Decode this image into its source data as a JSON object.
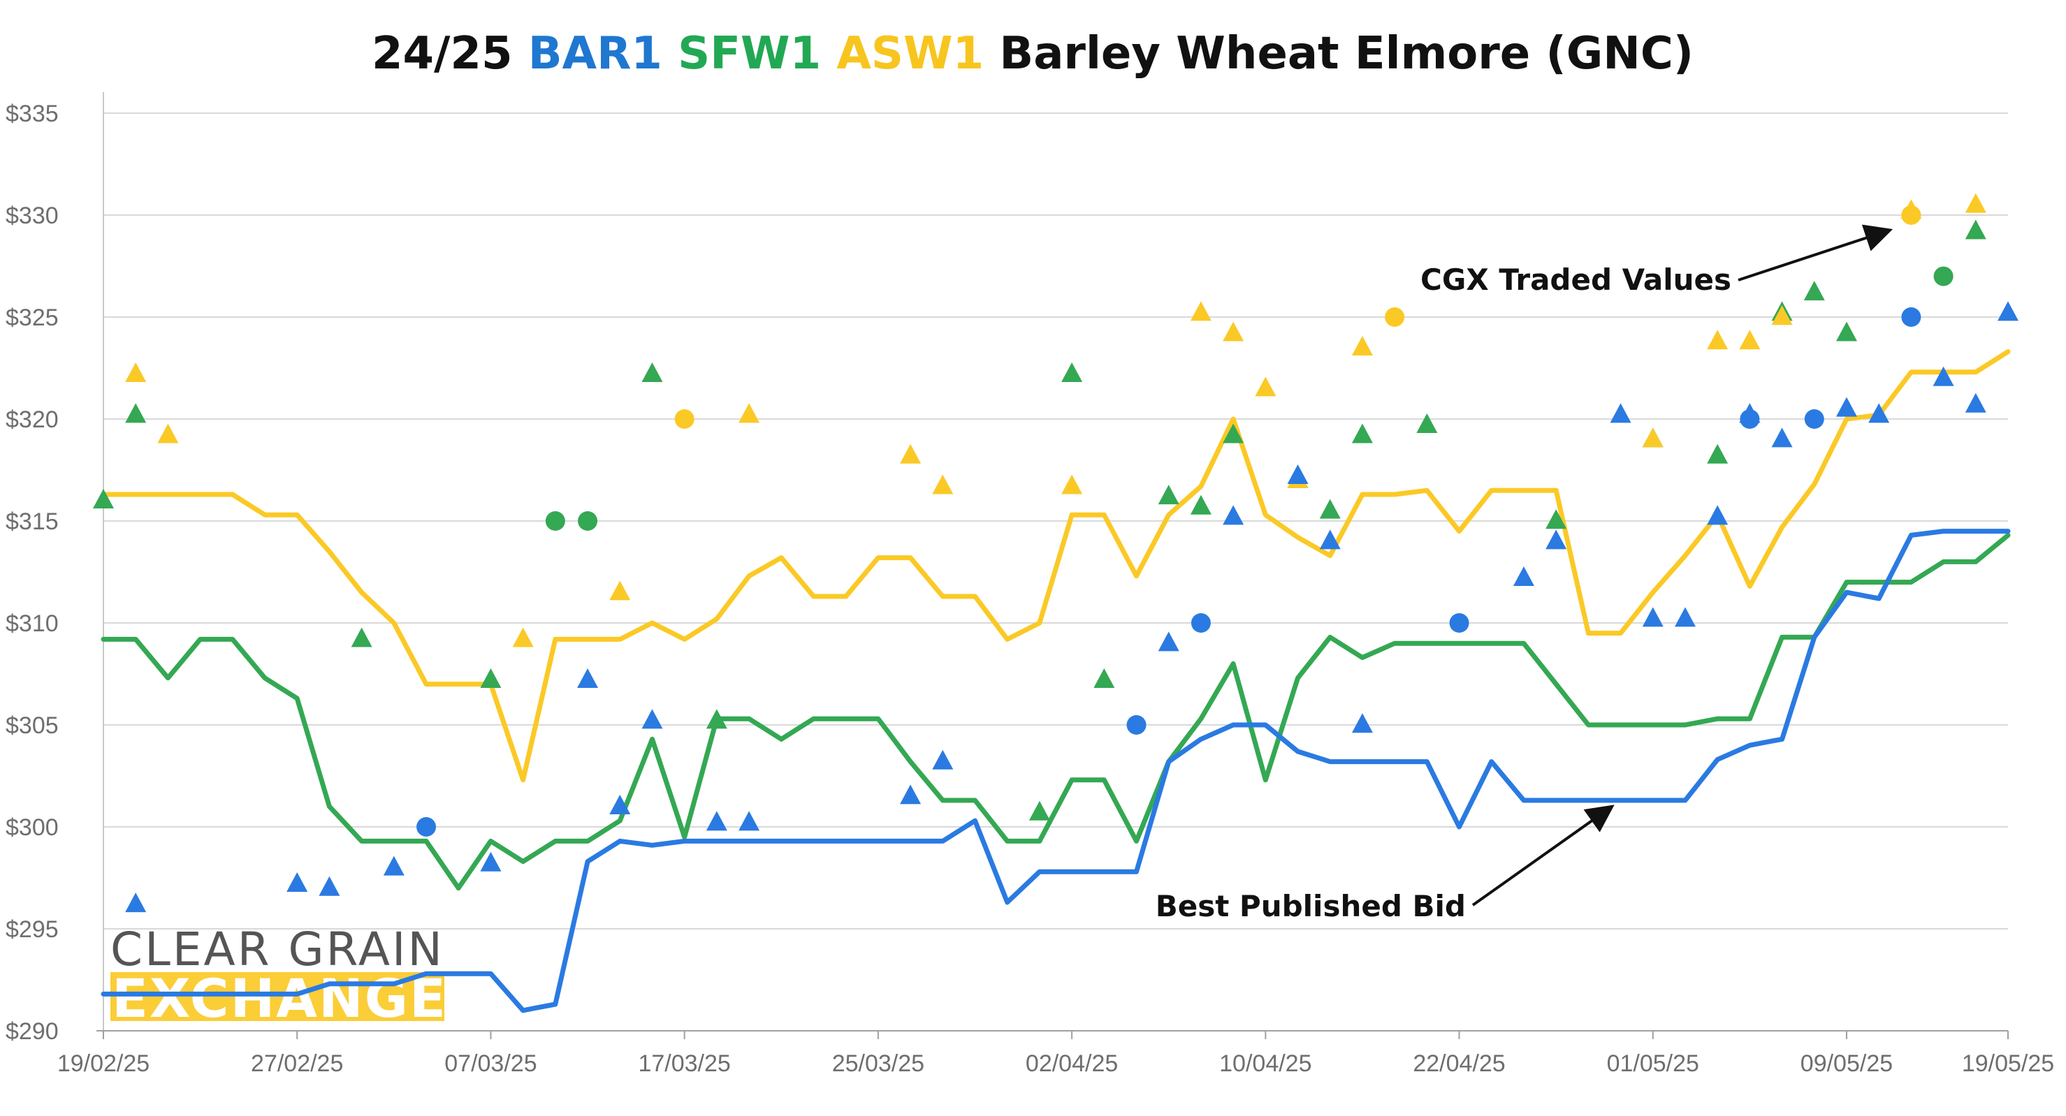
{
  "chart_data": {
    "type": "line",
    "title": {
      "parts": [
        {
          "text": "24/25 ",
          "color": "#111111"
        },
        {
          "text": "BAR1",
          "color": "#1f77d0"
        },
        {
          "text": " ",
          "color": "#111111"
        },
        {
          "text": "SFW1",
          "color": "#22a854"
        },
        {
          "text": " ",
          "color": "#111111"
        },
        {
          "text": "ASW1",
          "color": "#f7c51e"
        },
        {
          "text": " Barley Wheat Elmore (GNC)",
          "color": "#111111"
        }
      ]
    },
    "ylim": [
      290,
      335
    ],
    "yticks": [
      290,
      295,
      300,
      305,
      310,
      315,
      320,
      325,
      330,
      335
    ],
    "ytick_labels": [
      "$290",
      "$295",
      "$300",
      "$305",
      "$310",
      "$315",
      "$320",
      "$325",
      "$330",
      "$335"
    ],
    "xlim": [
      0,
      59
    ],
    "xticks": [
      0,
      6,
      12,
      18,
      24,
      30,
      36,
      42,
      48,
      54,
      59
    ],
    "xtick_labels": [
      "19/02/25",
      "27/02/25",
      "07/03/25",
      "17/03/25",
      "25/03/25",
      "02/04/25",
      "10/04/25",
      "22/04/25",
      "01/05/25",
      "09/05/25",
      "19/05/25"
    ],
    "grid": true,
    "colors": {
      "BAR1": "#2a7ae2",
      "SFW1": "#34a853",
      "ASW1": "#fbc926"
    },
    "series": [
      {
        "code": "ASW1",
        "kind": "line",
        "values": [
          [
            0,
            316.3
          ],
          [
            1,
            316.3
          ],
          [
            2,
            316.3
          ],
          [
            3,
            316.3
          ],
          [
            4,
            316.3
          ],
          [
            5,
            315.3
          ],
          [
            6,
            315.3
          ],
          [
            7,
            313.5
          ],
          [
            8,
            311.5
          ],
          [
            9,
            310.0
          ],
          [
            10,
            307.0
          ],
          [
            11,
            307.0
          ],
          [
            12,
            307.0
          ],
          [
            13,
            302.3
          ],
          [
            14,
            309.2
          ],
          [
            15,
            309.2
          ],
          [
            16,
            309.2
          ],
          [
            17,
            310.0
          ],
          [
            18,
            309.2
          ],
          [
            19,
            310.2
          ],
          [
            20,
            312.3
          ],
          [
            21,
            313.2
          ],
          [
            22,
            311.3
          ],
          [
            23,
            311.3
          ],
          [
            24,
            313.2
          ],
          [
            25,
            313.2
          ],
          [
            26,
            311.3
          ],
          [
            27,
            311.3
          ],
          [
            28,
            309.2
          ],
          [
            29,
            310.0
          ],
          [
            30,
            315.3
          ],
          [
            31,
            315.3
          ],
          [
            32,
            312.3
          ],
          [
            33,
            315.3
          ],
          [
            34,
            316.7
          ],
          [
            35,
            320.0
          ],
          [
            36,
            315.3
          ],
          [
            37,
            314.2
          ],
          [
            38,
            313.3
          ],
          [
            39,
            316.3
          ],
          [
            40,
            316.3
          ],
          [
            41,
            316.5
          ],
          [
            42,
            314.5
          ],
          [
            43,
            316.5
          ],
          [
            44,
            316.5
          ],
          [
            45,
            316.5
          ],
          [
            46,
            309.5
          ],
          [
            47,
            309.5
          ],
          [
            48,
            311.5
          ],
          [
            49,
            313.3
          ],
          [
            50,
            315.3
          ],
          [
            51,
            311.8
          ],
          [
            52,
            314.7
          ],
          [
            53,
            316.8
          ],
          [
            54,
            320.0
          ],
          [
            55,
            320.2
          ],
          [
            56,
            322.3
          ],
          [
            57,
            322.3
          ],
          [
            58,
            322.3
          ],
          [
            59,
            323.3
          ]
        ]
      },
      {
        "code": "SFW1",
        "kind": "line",
        "values": [
          [
            0,
            309.2
          ],
          [
            1,
            309.2
          ],
          [
            2,
            307.3
          ],
          [
            3,
            309.2
          ],
          [
            4,
            309.2
          ],
          [
            5,
            307.3
          ],
          [
            6,
            306.3
          ],
          [
            7,
            301.0
          ],
          [
            8,
            299.3
          ],
          [
            9,
            299.3
          ],
          [
            10,
            299.3
          ],
          [
            11,
            297.0
          ],
          [
            12,
            299.3
          ],
          [
            13,
            298.3
          ],
          [
            14,
            299.3
          ],
          [
            15,
            299.3
          ],
          [
            16,
            300.3
          ],
          [
            17,
            304.3
          ],
          [
            18,
            299.5
          ],
          [
            19,
            305.3
          ],
          [
            20,
            305.3
          ],
          [
            21,
            304.3
          ],
          [
            22,
            305.3
          ],
          [
            23,
            305.3
          ],
          [
            24,
            305.3
          ],
          [
            25,
            303.2
          ],
          [
            26,
            301.3
          ],
          [
            27,
            301.3
          ],
          [
            28,
            299.3
          ],
          [
            29,
            299.3
          ],
          [
            30,
            302.3
          ],
          [
            31,
            302.3
          ],
          [
            32,
            299.3
          ],
          [
            33,
            303.2
          ],
          [
            34,
            305.3
          ],
          [
            35,
            308.0
          ],
          [
            36,
            302.3
          ],
          [
            37,
            307.3
          ],
          [
            38,
            309.3
          ],
          [
            39,
            308.3
          ],
          [
            40,
            309.0
          ],
          [
            41,
            309.0
          ],
          [
            42,
            309.0
          ],
          [
            43,
            309.0
          ],
          [
            44,
            309.0
          ],
          [
            45,
            307.0
          ],
          [
            46,
            305.0
          ],
          [
            47,
            305.0
          ],
          [
            48,
            305.0
          ],
          [
            49,
            305.0
          ],
          [
            50,
            305.3
          ],
          [
            51,
            305.3
          ],
          [
            52,
            309.3
          ],
          [
            53,
            309.3
          ],
          [
            54,
            312.0
          ],
          [
            55,
            312.0
          ],
          [
            56,
            312.0
          ],
          [
            57,
            313.0
          ],
          [
            58,
            313.0
          ],
          [
            59,
            314.3
          ]
        ]
      },
      {
        "code": "BAR1",
        "kind": "line",
        "values": [
          [
            0,
            291.8
          ],
          [
            1,
            291.8
          ],
          [
            2,
            291.8
          ],
          [
            3,
            291.8
          ],
          [
            4,
            291.8
          ],
          [
            5,
            291.8
          ],
          [
            6,
            291.8
          ],
          [
            7,
            292.3
          ],
          [
            8,
            292.3
          ],
          [
            9,
            292.3
          ],
          [
            10,
            292.8
          ],
          [
            11,
            292.8
          ],
          [
            12,
            292.8
          ],
          [
            13,
            291.0
          ],
          [
            14,
            291.3
          ],
          [
            15,
            298.3
          ],
          [
            16,
            299.3
          ],
          [
            17,
            299.1
          ],
          [
            18,
            299.3
          ],
          [
            19,
            299.3
          ],
          [
            20,
            299.3
          ],
          [
            21,
            299.3
          ],
          [
            22,
            299.3
          ],
          [
            23,
            299.3
          ],
          [
            24,
            299.3
          ],
          [
            25,
            299.3
          ],
          [
            26,
            299.3
          ],
          [
            27,
            300.3
          ],
          [
            28,
            296.3
          ],
          [
            29,
            297.8
          ],
          [
            30,
            297.8
          ],
          [
            31,
            297.8
          ],
          [
            32,
            297.8
          ],
          [
            33,
            303.2
          ],
          [
            34,
            304.3
          ],
          [
            35,
            305.0
          ],
          [
            36,
            305.0
          ],
          [
            37,
            303.7
          ],
          [
            38,
            303.2
          ],
          [
            39,
            303.2
          ],
          [
            40,
            303.2
          ],
          [
            41,
            303.2
          ],
          [
            42,
            300.0
          ],
          [
            43,
            303.2
          ],
          [
            44,
            301.3
          ],
          [
            45,
            301.3
          ],
          [
            46,
            301.3
          ],
          [
            47,
            301.3
          ],
          [
            48,
            301.3
          ],
          [
            49,
            301.3
          ],
          [
            50,
            303.3
          ],
          [
            51,
            304.0
          ],
          [
            52,
            304.3
          ],
          [
            53,
            309.3
          ],
          [
            54,
            311.5
          ],
          [
            55,
            311.2
          ],
          [
            56,
            314.3
          ],
          [
            57,
            314.5
          ],
          [
            58,
            314.5
          ],
          [
            59,
            314.5
          ]
        ]
      },
      {
        "code": "SFW1",
        "kind": "triangle",
        "values": [
          [
            0,
            316.0
          ],
          [
            1,
            320.2
          ],
          [
            8,
            309.2
          ],
          [
            12,
            307.2
          ],
          [
            17,
            322.2
          ],
          [
            19,
            305.2
          ],
          [
            29,
            300.7
          ],
          [
            30,
            322.2
          ],
          [
            31,
            307.2
          ],
          [
            33,
            316.2
          ],
          [
            34,
            315.7
          ],
          [
            35,
            319.2
          ],
          [
            37,
            317.0
          ],
          [
            38,
            315.5
          ],
          [
            39,
            319.2
          ],
          [
            41,
            319.7
          ],
          [
            45,
            315.0
          ],
          [
            48,
            319.0
          ],
          [
            50,
            318.2
          ],
          [
            51,
            320.2
          ],
          [
            52,
            325.2
          ],
          [
            53,
            326.2
          ],
          [
            54,
            324.2
          ],
          [
            58,
            329.2
          ]
        ]
      },
      {
        "code": "SFW1",
        "kind": "circle",
        "values": [
          [
            14,
            315.0
          ],
          [
            15,
            315.0
          ],
          [
            57,
            327.0
          ]
        ]
      },
      {
        "code": "ASW1",
        "kind": "triangle",
        "values": [
          [
            1,
            322.2
          ],
          [
            2,
            319.2
          ],
          [
            13,
            309.2
          ],
          [
            16,
            311.5
          ],
          [
            20,
            320.2
          ],
          [
            25,
            318.2
          ],
          [
            26,
            316.7
          ],
          [
            30,
            316.7
          ],
          [
            34,
            325.2
          ],
          [
            35,
            324.2
          ],
          [
            36,
            321.5
          ],
          [
            37,
            317.0
          ],
          [
            39,
            323.5
          ],
          [
            48,
            319.0
          ],
          [
            50,
            323.8
          ],
          [
            51,
            323.8
          ],
          [
            52,
            325.0
          ],
          [
            56,
            330.2
          ],
          [
            58,
            330.5
          ]
        ]
      },
      {
        "code": "ASW1",
        "kind": "circle",
        "values": [
          [
            18,
            320.0
          ],
          [
            40,
            325.0
          ],
          [
            56,
            330.0
          ]
        ]
      },
      {
        "code": "BAR1",
        "kind": "triangle",
        "values": [
          [
            1,
            296.2
          ],
          [
            6,
            297.2
          ],
          [
            7,
            297.0
          ],
          [
            9,
            298.0
          ],
          [
            12,
            298.2
          ],
          [
            15,
            307.2
          ],
          [
            16,
            301.0
          ],
          [
            17,
            305.2
          ],
          [
            19,
            300.2
          ],
          [
            20,
            300.2
          ],
          [
            25,
            301.5
          ],
          [
            26,
            303.2
          ],
          [
            33,
            309.0
          ],
          [
            35,
            315.2
          ],
          [
            37,
            317.2
          ],
          [
            38,
            314.0
          ],
          [
            39,
            305.0
          ],
          [
            44,
            312.2
          ],
          [
            45,
            314.0
          ],
          [
            47,
            320.2
          ],
          [
            48,
            310.2
          ],
          [
            49,
            310.2
          ],
          [
            50,
            315.2
          ],
          [
            51,
            320.2
          ],
          [
            52,
            319.0
          ],
          [
            54,
            320.5
          ],
          [
            55,
            320.2
          ],
          [
            57,
            322.0
          ],
          [
            58,
            320.7
          ],
          [
            59,
            325.2
          ]
        ]
      },
      {
        "code": "BAR1",
        "kind": "circle",
        "values": [
          [
            10,
            300.0
          ],
          [
            32,
            305.0
          ],
          [
            34,
            310.0
          ],
          [
            42,
            310.0
          ],
          [
            51,
            320.0
          ],
          [
            53,
            320.0
          ],
          [
            56,
            325.0
          ]
        ]
      }
    ],
    "annotations": [
      {
        "text": "CGX Traded Values",
        "target": [
          55.7,
          329.5
        ],
        "anchor_side": "right"
      },
      {
        "text": "Best Published Bid",
        "target": [
          47.1,
          301.2
        ],
        "anchor_side": "right"
      }
    ]
  },
  "watermark": {
    "line1": "CLEAR GRAIN",
    "line2": "EXCHANGE"
  }
}
